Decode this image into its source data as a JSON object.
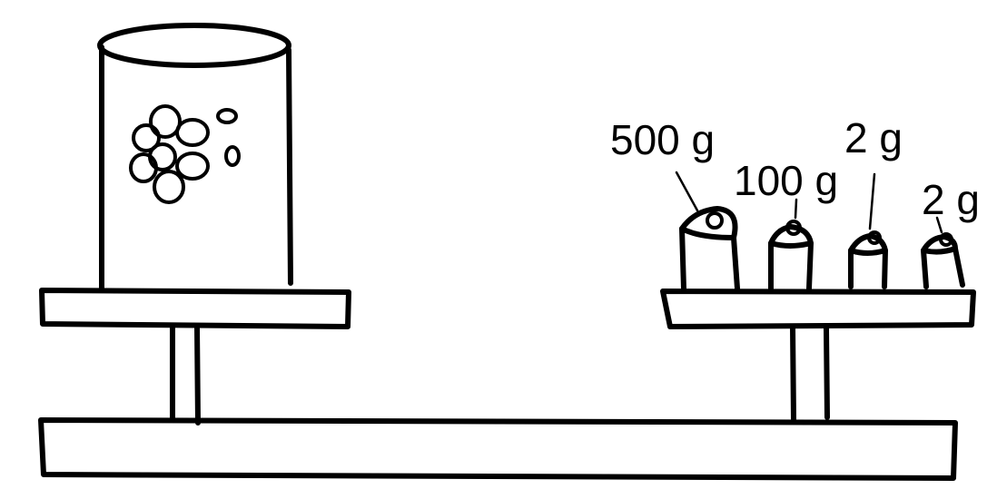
{
  "weights": [
    {
      "label": "500 g"
    },
    {
      "label": "100 g"
    },
    {
      "label": "2 g"
    },
    {
      "label": "2 g"
    }
  ]
}
